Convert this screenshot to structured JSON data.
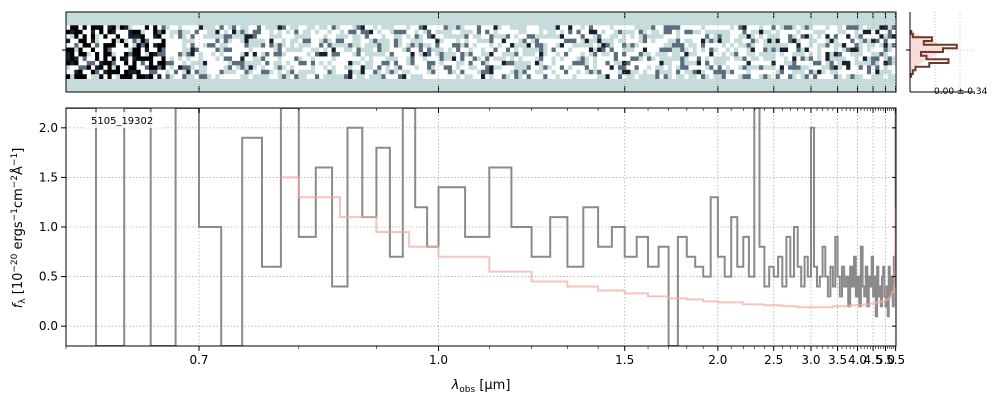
{
  "chart_data": [
    {
      "type": "heatmap",
      "description_panel": "2D spectrum",
      "colormap": [
        "#ffffff",
        "#c5dcdb",
        "#5c6d80",
        "#1a1f2e",
        "#000000"
      ],
      "background_color": "#c5dcdb",
      "trace_rows_fraction": [
        0.22,
        0.78
      ],
      "x_ticks_shared_with": "spectrum"
    },
    {
      "type": "line",
      "annotation": "0.00 ± 0.34",
      "profile_color": "#6b3a2a",
      "model_color": "#f4c6c0",
      "profile": [
        0.02,
        0.05,
        0.4,
        0.25,
        0.85,
        0.6,
        0.2,
        0.3,
        0.7,
        0.35,
        0.1,
        0.05,
        0.02
      ],
      "model": [
        0.05,
        0.1,
        0.3,
        0.45,
        0.55,
        0.65,
        0.55,
        0.45,
        0.3,
        0.2,
        0.1,
        0.05,
        0.02
      ],
      "xlim": [
        0,
        1
      ],
      "ylim": [
        -6,
        6
      ]
    },
    {
      "type": "line",
      "title": "",
      "label": "5105_19302",
      "xlabel": "λ",
      "xlabel_sub": "obs",
      "xlabel_unit": " [μm]",
      "ylabel": "f",
      "ylabel_sub": "λ",
      "ylabel_unit": " [10",
      "ylabel_exp1": "−20",
      "ylabel_mid1": " ergs",
      "ylabel_exp2": "−1",
      "ylabel_mid2": "cm",
      "ylabel_exp3": "−2",
      "ylabel_mid3": "Å",
      "ylabel_exp4": "−1",
      "ylabel_end": "]",
      "x_scale": "reciprocal",
      "xlim": [
        0.6,
        5.52
      ],
      "ylim": [
        -0.2,
        2.2
      ],
      "x_ticks": [
        "0.7",
        "1.0",
        "1.5",
        "2.0",
        "2.5",
        "3.0",
        "3.5",
        "4.0",
        "4.5",
        "5.0",
        "5.5"
      ],
      "x_tick_values": [
        0.7,
        1.0,
        1.5,
        2.0,
        2.5,
        3.0,
        3.5,
        4.0,
        4.5,
        5.0,
        5.5
      ],
      "y_ticks": [
        "0.0",
        "0.5",
        "1.0",
        "1.5",
        "2.0"
      ],
      "y_tick_values": [
        0.0,
        0.5,
        1.0,
        1.5,
        2.0
      ],
      "grid": true,
      "series": [
        {
          "color": "#8a8a8a",
          "x": [
            0.6,
            0.62,
            0.64,
            0.66,
            0.68,
            0.7,
            0.72,
            0.74,
            0.76,
            0.78,
            0.8,
            0.82,
            0.84,
            0.86,
            0.88,
            0.9,
            0.92,
            0.94,
            0.96,
            0.98,
            1.0,
            1.05,
            1.1,
            1.15,
            1.2,
            1.25,
            1.3,
            1.35,
            1.4,
            1.45,
            1.5,
            1.55,
            1.6,
            1.65,
            1.7,
            1.75,
            1.8,
            1.85,
            1.9,
            1.95,
            2.0,
            2.05,
            2.1,
            2.15,
            2.2,
            2.25,
            2.3,
            2.35,
            2.4,
            2.45,
            2.5,
            2.55,
            2.6,
            2.65,
            2.7,
            2.75,
            2.8,
            2.85,
            2.9,
            2.95,
            3.0,
            3.05,
            3.1,
            3.15,
            3.2,
            3.25,
            3.3,
            3.35,
            3.4,
            3.45,
            3.5,
            3.55,
            3.6,
            3.65,
            3.7,
            3.75,
            3.8,
            3.85,
            3.9,
            3.95,
            4.0,
            4.05,
            4.1,
            4.15,
            4.2,
            4.25,
            4.3,
            4.35,
            4.4,
            4.45,
            4.5,
            4.55,
            4.6,
            4.65,
            4.7,
            4.75,
            4.8,
            4.85,
            4.9,
            4.95,
            5.0,
            5.05,
            5.1,
            5.15,
            5.2,
            5.25,
            5.3,
            5.35,
            5.4,
            5.45,
            5.48,
            5.5
          ],
          "y": [
            2.2,
            -0.2,
            2.2,
            -0.2,
            2.2,
            1.0,
            -0.2,
            1.9,
            0.6,
            2.2,
            0.9,
            1.6,
            0.4,
            2.0,
            1.1,
            1.8,
            0.7,
            2.2,
            1.2,
            0.8,
            1.4,
            0.9,
            1.6,
            1.0,
            0.7,
            1.1,
            0.6,
            1.2,
            0.8,
            1.0,
            0.7,
            0.9,
            0.6,
            0.8,
            -0.2,
            0.9,
            0.7,
            0.6,
            0.5,
            1.3,
            0.7,
            0.5,
            1.1,
            0.6,
            0.9,
            0.5,
            2.2,
            0.8,
            0.4,
            0.6,
            0.5,
            0.7,
            0.4,
            0.9,
            0.5,
            1.0,
            0.6,
            0.4,
            0.7,
            0.5,
            2.0,
            0.6,
            0.4,
            0.5,
            0.8,
            0.5,
            0.3,
            0.6,
            0.4,
            0.9,
            0.5,
            0.3,
            0.6,
            0.4,
            0.5,
            0.2,
            0.6,
            0.4,
            0.7,
            0.3,
            0.5,
            0.2,
            0.8,
            0.4,
            0.3,
            0.6,
            0.2,
            0.5,
            0.4,
            0.7,
            0.3,
            0.5,
            0.1,
            0.6,
            0.3,
            0.4,
            0.2,
            0.5,
            0.6,
            0.3,
            0.2,
            0.4,
            0.1,
            0.6,
            0.3,
            0.4,
            0.5,
            0.2,
            0.7,
            0.4,
            0.6,
            2.2
          ]
        },
        {
          "color": "#f4a9a2",
          "x": [
            0.78,
            0.8,
            0.85,
            0.9,
            0.95,
            1.0,
            1.1,
            1.2,
            1.3,
            1.4,
            1.5,
            1.6,
            1.7,
            1.8,
            1.9,
            2.0,
            2.2,
            2.4,
            2.6,
            2.8,
            3.0,
            3.2,
            3.4,
            3.6,
            3.8,
            4.0,
            4.2,
            4.4,
            4.6,
            4.8,
            5.0,
            5.2,
            5.3,
            5.4,
            5.45,
            5.48,
            5.5
          ],
          "y": [
            1.5,
            1.3,
            1.1,
            0.95,
            0.8,
            0.7,
            0.55,
            0.45,
            0.4,
            0.36,
            0.33,
            0.3,
            0.28,
            0.27,
            0.25,
            0.24,
            0.22,
            0.21,
            0.2,
            0.19,
            0.19,
            0.19,
            0.2,
            0.2,
            0.21,
            0.21,
            0.22,
            0.23,
            0.24,
            0.25,
            0.27,
            0.3,
            0.34,
            0.4,
            0.55,
            0.8,
            1.2
          ]
        }
      ]
    }
  ]
}
